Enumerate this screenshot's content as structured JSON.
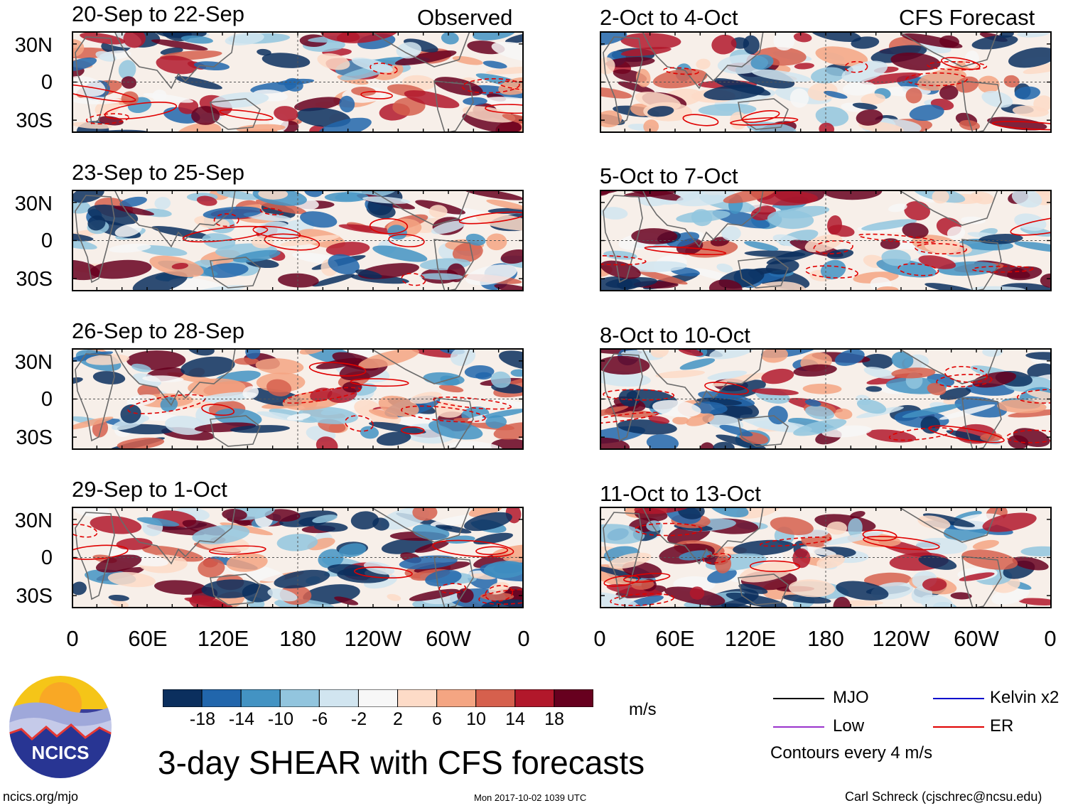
{
  "header": {
    "observed_label": "Observed",
    "forecast_label": "CFS Forecast"
  },
  "chart_data": {
    "type": "heatmap",
    "title": "3-day SHEAR with CFS forecasts",
    "variable": "Vertical wind shear",
    "units": "m/s",
    "x_ticks": [
      "0",
      "60E",
      "120E",
      "180",
      "120W",
      "60W",
      "0"
    ],
    "y_ticks": [
      "30N",
      "0",
      "30S"
    ],
    "xlim": [
      0,
      360
    ],
    "ylim": [
      -40,
      40
    ],
    "panels": [
      {
        "title": "20-Sep to 22-Sep",
        "source": "Observed"
      },
      {
        "title": "23-Sep to 25-Sep",
        "source": "Observed"
      },
      {
        "title": "26-Sep to 28-Sep",
        "source": "Observed"
      },
      {
        "title": "29-Sep to 1-Oct",
        "source": "Observed"
      },
      {
        "title": "2-Oct to 4-Oct",
        "source": "CFS Forecast"
      },
      {
        "title": "5-Oct to 7-Oct",
        "source": "CFS Forecast"
      },
      {
        "title": "8-Oct to 10-Oct",
        "source": "CFS Forecast"
      },
      {
        "title": "11-Oct to 13-Oct",
        "source": "CFS Forecast"
      }
    ],
    "colorbar": {
      "ticks": [
        "-18",
        "-14",
        "-10",
        "-6",
        "-2",
        "2",
        "6",
        "10",
        "14",
        "18"
      ],
      "colors": [
        "#0b2f5e",
        "#2166ac",
        "#4393c3",
        "#92c5de",
        "#d1e5f0",
        "#f7f7f7",
        "#fddbc7",
        "#f4a582",
        "#d6604d",
        "#b2182b",
        "#67001f"
      ]
    },
    "legend": [
      {
        "label": "MJO",
        "color": "#000000"
      },
      {
        "label": "Kelvin x2",
        "color": "#0000cc"
      },
      {
        "label": "Low",
        "color": "#9933cc"
      },
      {
        "label": "ER",
        "color": "#e00000"
      }
    ],
    "contour_note": "Contours every 4 m/s"
  },
  "footer": {
    "logo_text": "NCICS",
    "url": "ncics.org/mjo",
    "timestamp": "Mon 2017-10-02 1039 UTC",
    "credit": "Carl Schreck (cjschrec@ncsu.edu)"
  }
}
